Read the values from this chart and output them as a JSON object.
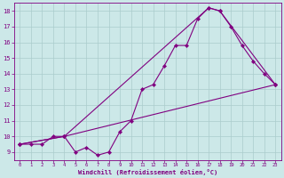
{
  "line1_x": [
    0,
    1,
    2,
    3,
    4,
    5,
    6,
    7,
    8,
    9,
    10,
    11,
    12,
    13,
    14,
    15,
    16,
    17,
    18,
    19,
    20,
    21,
    22,
    23
  ],
  "line1_y": [
    9.5,
    9.5,
    9.5,
    10.0,
    10.0,
    9.0,
    9.3,
    8.8,
    9.0,
    10.3,
    11.0,
    13.0,
    13.3,
    14.5,
    15.8,
    15.8,
    17.5,
    18.2,
    18.0,
    17.0,
    15.8,
    14.8,
    14.0,
    13.3
  ],
  "line2_x": [
    0,
    4,
    23
  ],
  "line2_y": [
    9.5,
    10.0,
    13.3
  ],
  "line3_x": [
    0,
    4,
    17,
    18,
    23
  ],
  "line3_y": [
    9.5,
    10.0,
    18.2,
    18.0,
    13.3
  ],
  "color": "#800080",
  "bg_color": "#cce8e8",
  "grid_color": "#aacccc",
  "xlabel": "Windchill (Refroidissement éolien,°C)",
  "xlim": [
    -0.5,
    23.5
  ],
  "ylim": [
    8.5,
    18.5
  ],
  "yticks": [
    9,
    10,
    11,
    12,
    13,
    14,
    15,
    16,
    17,
    18
  ],
  "xticks": [
    0,
    1,
    2,
    3,
    4,
    5,
    6,
    7,
    8,
    9,
    10,
    11,
    12,
    13,
    14,
    15,
    16,
    17,
    18,
    19,
    20,
    21,
    22,
    23
  ]
}
